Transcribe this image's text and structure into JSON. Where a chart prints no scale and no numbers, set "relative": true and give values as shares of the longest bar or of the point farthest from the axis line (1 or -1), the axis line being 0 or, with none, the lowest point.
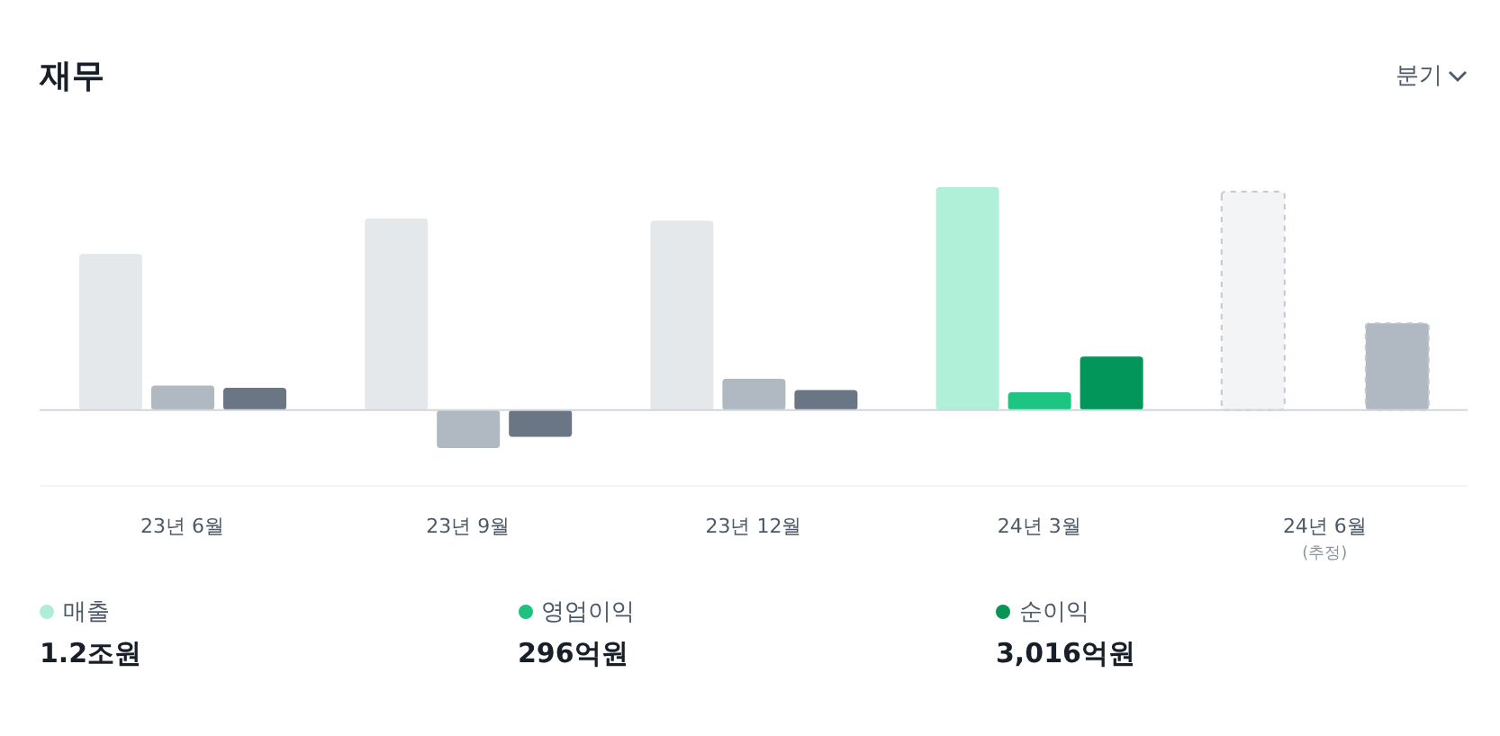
{
  "chart_data": {
    "type": "bar",
    "title": "재무",
    "relative": true,
    "legend": "bottom",
    "categories": [
      "23년 6월",
      "23년 9월",
      "23년 12월",
      "24년 3월",
      "24년 6월"
    ],
    "series": [
      {
        "name": "매출",
        "color": "#aeeed5",
        "colors": [
          "#e5e8eb",
          "#e5e8eb",
          "#e5e8eb",
          "#b0f0d8",
          "#f2f4f6"
        ],
        "values": [
          0.7,
          0.86,
          0.85,
          1,
          0.98
        ]
      },
      {
        "name": "영업이익",
        "color": "#1dc281",
        "colors": [
          "#b0b8c1",
          "#b0b8c1",
          "#b0b8c1",
          "#1ec482",
          null
        ],
        "values": [
          0.11,
          -0.17,
          0.14,
          0.08,
          null
        ]
      },
      {
        "name": "순이익",
        "color": "#079456",
        "colors": [
          "#6b7684",
          "#6b7684",
          "#6b7684",
          "#03965a",
          "#b0b8c1"
        ],
        "values": [
          0.1,
          -0.12,
          0.09,
          0.24,
          0.39
        ]
      }
    ],
    "annotations": [
      "1.2조원",
      "296억원",
      "3,016억원",
      "분기",
      "(추정)"
    ]
  }
}
